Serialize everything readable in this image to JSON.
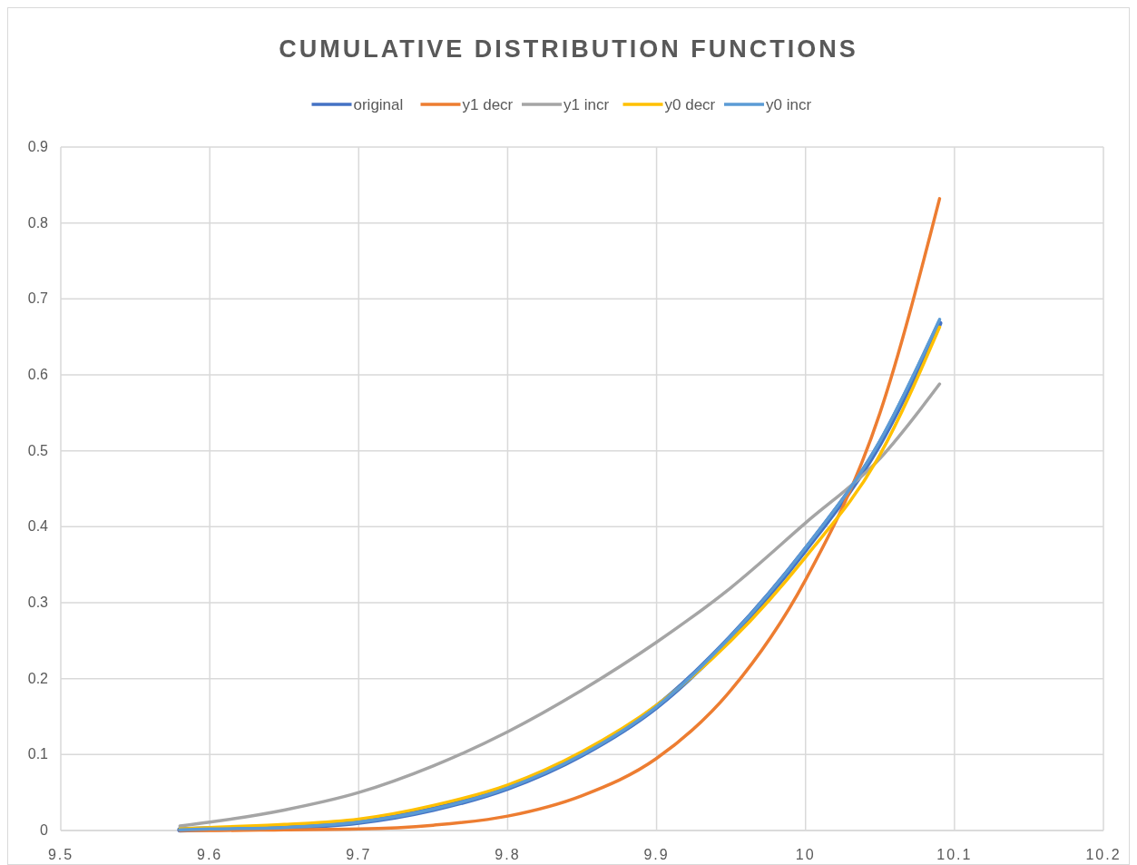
{
  "chart_data": {
    "type": "line",
    "title": "CUMULATIVE DISTRIBUTION FUNCTIONS",
    "x": [
      9.58,
      9.6,
      9.65,
      9.7,
      9.75,
      9.8,
      9.85,
      9.9,
      9.95,
      10,
      10.05,
      10.09
    ],
    "series": [
      {
        "name": "original",
        "color": "#4472c4",
        "values": [
          0.001,
          0.002,
          0.004,
          0.011,
          0.028,
          0.056,
          0.1,
          0.163,
          0.255,
          0.37,
          0.51,
          0.668
        ]
      },
      {
        "name": "y1 decr",
        "color": "#ed7d31",
        "values": [
          0,
          0,
          0.001,
          0.002,
          0.007,
          0.019,
          0.046,
          0.095,
          0.185,
          0.33,
          0.55,
          0.832
        ]
      },
      {
        "name": "y1 incr",
        "color": "#a5a5a5",
        "values": [
          0.006,
          0.011,
          0.027,
          0.05,
          0.085,
          0.13,
          0.185,
          0.248,
          0.32,
          0.405,
          0.49,
          0.588
        ]
      },
      {
        "name": "y0 decr",
        "color": "#ffc000",
        "values": [
          0.002,
          0.004,
          0.008,
          0.015,
          0.033,
          0.06,
          0.104,
          0.165,
          0.25,
          0.36,
          0.495,
          0.663
        ]
      },
      {
        "name": "y0 incr",
        "color": "#5b9bd5",
        "values": [
          0.001,
          0.002,
          0.004,
          0.011,
          0.028,
          0.056,
          0.1,
          0.163,
          0.256,
          0.372,
          0.513,
          0.673
        ]
      }
    ],
    "xlim": [
      9.5,
      10.2
    ],
    "xticks": [
      9.5,
      9.6,
      9.7,
      9.8,
      9.9,
      10,
      10.1,
      10.2
    ],
    "ylim": [
      0,
      0.9
    ],
    "yticks": [
      0,
      0.1,
      0.2,
      0.3,
      0.4,
      0.5,
      0.6,
      0.7,
      0.8,
      0.9
    ],
    "grid": true,
    "legend": "top",
    "marker": "none",
    "line_style": "solid"
  }
}
